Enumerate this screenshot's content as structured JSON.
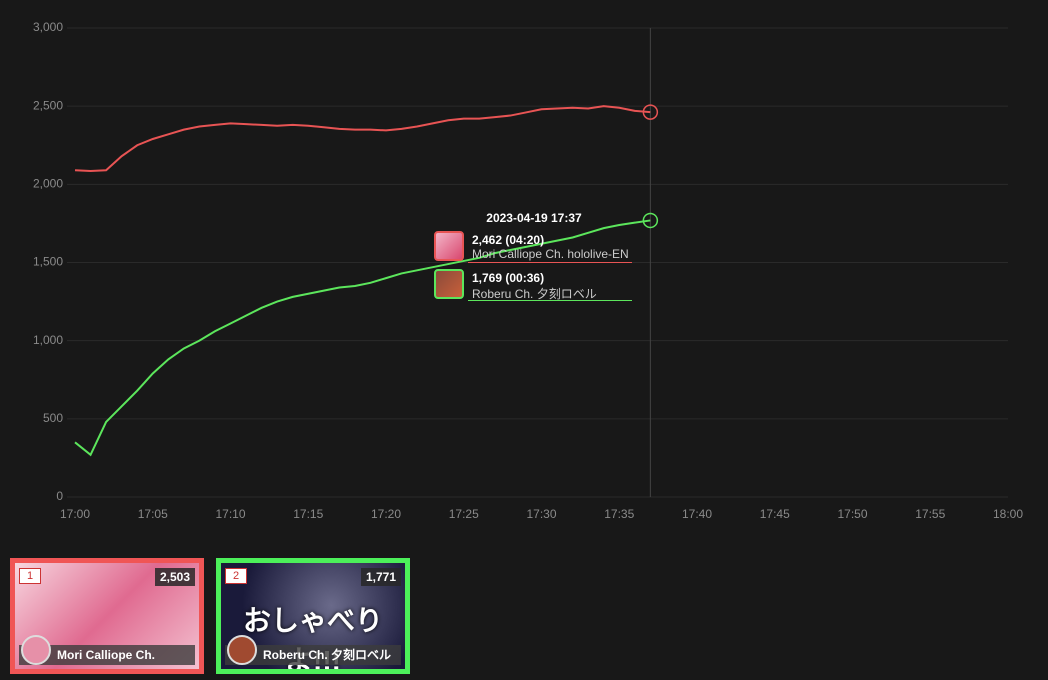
{
  "chart_data": {
    "type": "line",
    "x": [
      "17:00",
      "17:01",
      "17:02",
      "17:03",
      "17:04",
      "17:05",
      "17:06",
      "17:07",
      "17:08",
      "17:09",
      "17:10",
      "17:11",
      "17:12",
      "17:13",
      "17:14",
      "17:15",
      "17:16",
      "17:17",
      "17:18",
      "17:19",
      "17:20",
      "17:21",
      "17:22",
      "17:23",
      "17:24",
      "17:25",
      "17:26",
      "17:27",
      "17:28",
      "17:29",
      "17:30",
      "17:31",
      "17:32",
      "17:33",
      "17:34",
      "17:35",
      "17:36",
      "17:37"
    ],
    "series": [
      {
        "name": "Mori Calliope Ch. hololive-EN",
        "color": "#e85454",
        "values": [
          2090,
          2085,
          2090,
          2180,
          2250,
          2290,
          2320,
          2350,
          2370,
          2380,
          2390,
          2385,
          2380,
          2375,
          2380,
          2375,
          2365,
          2355,
          2350,
          2350,
          2345,
          2355,
          2370,
          2390,
          2410,
          2420,
          2420,
          2430,
          2440,
          2460,
          2480,
          2485,
          2490,
          2485,
          2500,
          2490,
          2470,
          2462
        ]
      },
      {
        "name": "Roberu Ch. 夕刻ロベル",
        "color": "#5ce65c",
        "values": [
          350,
          270,
          480,
          580,
          680,
          790,
          880,
          950,
          1000,
          1060,
          1110,
          1160,
          1210,
          1250,
          1280,
          1300,
          1320,
          1340,
          1350,
          1370,
          1400,
          1430,
          1450,
          1470,
          1490,
          1510,
          1530,
          1560,
          1580,
          1600,
          1620,
          1640,
          1660,
          1690,
          1720,
          1740,
          1755,
          1769
        ]
      }
    ],
    "xlim": [
      "17:00",
      "18:00"
    ],
    "xticks": [
      "17:00",
      "17:05",
      "17:10",
      "17:15",
      "17:20",
      "17:25",
      "17:30",
      "17:35",
      "17:40",
      "17:45",
      "17:50",
      "17:55",
      "18:00"
    ],
    "ylim": [
      0,
      3000
    ],
    "yticks": [
      0,
      500,
      {
        "value": 1000,
        "label": "1,000"
      },
      {
        "value": 1500,
        "label": "1,500"
      },
      {
        "value": 2000,
        "label": "2,000"
      },
      {
        "value": 2500,
        "label": "2,500"
      },
      {
        "value": 3000,
        "label": "3,000"
      }
    ],
    "grid": true,
    "tooltip": {
      "title": "2023-04-19 17:37",
      "entries": [
        {
          "value": "2,462",
          "duration": "(04:20)",
          "name": "Mori Calliope Ch. hololive-EN"
        },
        {
          "value": "1,769",
          "duration": "(00:36)",
          "name": "Roberu Ch. 夕刻ロベル"
        }
      ]
    }
  },
  "cards": [
    {
      "rank": "1",
      "count": "2,503",
      "name": "Mori Calliope Ch.",
      "color": "#f05555"
    },
    {
      "rank": "2",
      "count": "1,771",
      "name": "Roberu Ch. 夕刻ロベル",
      "thumb_text": "おしゃべりよ!!!",
      "color": "#4cf05a"
    }
  ]
}
